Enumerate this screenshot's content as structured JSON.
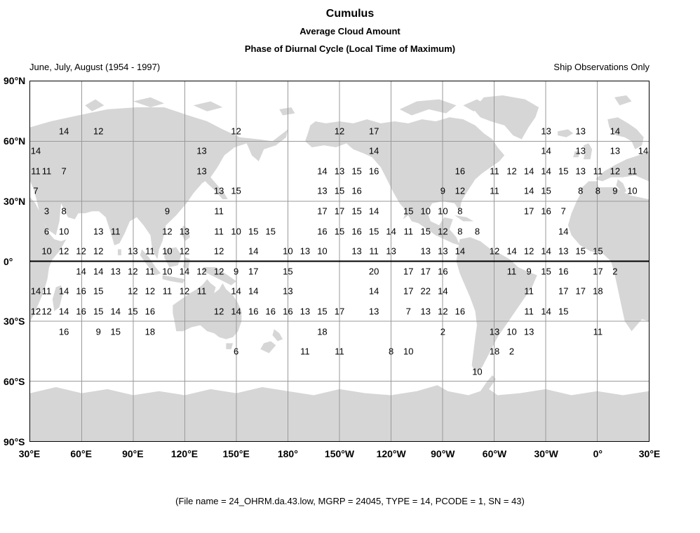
{
  "header": {
    "title": "Cumulus",
    "subtitle1": "Average Cloud Amount",
    "subtitle2": "Phase of Diurnal Cycle (Local Time of Maximum)",
    "left_note": "June, July, August (1954 - 1997)",
    "right_note": "Ship Observations Only"
  },
  "footer": {
    "file_info": "(File name = 24_OHRM.da.43.low, MGRP = 24045, TYPE = 14, PCODE = 1, SN = 43)"
  },
  "colors": {
    "land": "#d6d6d6",
    "grid_line": "#9a9a9a",
    "equator_line": "#000000",
    "map_border": "#000000",
    "text": "#000000",
    "background": "#ffffff"
  },
  "chart_data": {
    "type": "heatmap",
    "title": "Cumulus",
    "subtitle": "Average Cloud Amount",
    "variable": "Phase of Diurnal Cycle (Local Time of Maximum)",
    "season": "June, July, August (1954 - 1997)",
    "source": "Ship Observations Only",
    "projection": "equirectangular world map, longitude 30E eastward around to 30E, latitude 90N to 90S",
    "grid_interval_deg": 30,
    "cell_size_deg": 10,
    "x_tick_labels": [
      "30°E",
      "60°E",
      "90°E",
      "120°E",
      "150°E",
      "180°",
      "150°W",
      "120°W",
      "90°W",
      "60°W",
      "30°W",
      "0°",
      "30°E"
    ],
    "y_tick_labels": [
      "90°N",
      "60°N",
      "30°N",
      "0°",
      "30°S",
      "60°S",
      "90°S"
    ],
    "points_columns": [
      "lon_deg_map (30 = left edge, increases eastward to 390 = right edge)",
      "lat_deg",
      "local_time_of_maximum"
    ],
    "points": [
      [
        50,
        65,
        14
      ],
      [
        70,
        65,
        12
      ],
      [
        150,
        65,
        12
      ],
      [
        210,
        65,
        12
      ],
      [
        230,
        65,
        17
      ],
      [
        330,
        65,
        13
      ],
      [
        350,
        65,
        13
      ],
      [
        370,
        65,
        14
      ],
      [
        30,
        55,
        14
      ],
      [
        130,
        55,
        13
      ],
      [
        230,
        55,
        14
      ],
      [
        330,
        55,
        14
      ],
      [
        350,
        55,
        13
      ],
      [
        370,
        55,
        13
      ],
      [
        390,
        55,
        14
      ],
      [
        30,
        45,
        11
      ],
      [
        40,
        45,
        11
      ],
      [
        50,
        45,
        7
      ],
      [
        130,
        45,
        13
      ],
      [
        200,
        45,
        14
      ],
      [
        210,
        45,
        13
      ],
      [
        220,
        45,
        15
      ],
      [
        230,
        45,
        16
      ],
      [
        280,
        45,
        16
      ],
      [
        300,
        45,
        11
      ],
      [
        310,
        45,
        12
      ],
      [
        320,
        45,
        14
      ],
      [
        330,
        45,
        14
      ],
      [
        340,
        45,
        15
      ],
      [
        350,
        45,
        13
      ],
      [
        360,
        45,
        11
      ],
      [
        370,
        45,
        12
      ],
      [
        380,
        45,
        11
      ],
      [
        30,
        35,
        7
      ],
      [
        140,
        35,
        13
      ],
      [
        150,
        35,
        15
      ],
      [
        200,
        35,
        13
      ],
      [
        210,
        35,
        15
      ],
      [
        220,
        35,
        16
      ],
      [
        270,
        35,
        9
      ],
      [
        280,
        35,
        12
      ],
      [
        300,
        35,
        11
      ],
      [
        320,
        35,
        14
      ],
      [
        330,
        35,
        15
      ],
      [
        350,
        35,
        8
      ],
      [
        360,
        35,
        8
      ],
      [
        370,
        35,
        9
      ],
      [
        380,
        35,
        10
      ],
      [
        40,
        25,
        3
      ],
      [
        50,
        25,
        8
      ],
      [
        110,
        25,
        9
      ],
      [
        140,
        25,
        11
      ],
      [
        200,
        25,
        17
      ],
      [
        210,
        25,
        17
      ],
      [
        220,
        25,
        15
      ],
      [
        230,
        25,
        14
      ],
      [
        250,
        25,
        15
      ],
      [
        260,
        25,
        10
      ],
      [
        270,
        25,
        10
      ],
      [
        280,
        25,
        8
      ],
      [
        320,
        25,
        17
      ],
      [
        330,
        25,
        16
      ],
      [
        340,
        25,
        7
      ],
      [
        40,
        15,
        6
      ],
      [
        50,
        15,
        10
      ],
      [
        70,
        15,
        13
      ],
      [
        80,
        15,
        11
      ],
      [
        110,
        15,
        12
      ],
      [
        120,
        15,
        13
      ],
      [
        140,
        15,
        11
      ],
      [
        150,
        15,
        10
      ],
      [
        160,
        15,
        15
      ],
      [
        170,
        15,
        15
      ],
      [
        200,
        15,
        16
      ],
      [
        210,
        15,
        15
      ],
      [
        220,
        15,
        16
      ],
      [
        230,
        15,
        15
      ],
      [
        240,
        15,
        14
      ],
      [
        250,
        15,
        11
      ],
      [
        260,
        15,
        15
      ],
      [
        270,
        15,
        12
      ],
      [
        280,
        15,
        8
      ],
      [
        290,
        15,
        8
      ],
      [
        340,
        15,
        14
      ],
      [
        40,
        5,
        10
      ],
      [
        50,
        5,
        12
      ],
      [
        60,
        5,
        12
      ],
      [
        70,
        5,
        12
      ],
      [
        90,
        5,
        13
      ],
      [
        100,
        5,
        11
      ],
      [
        110,
        5,
        10
      ],
      [
        120,
        5,
        12
      ],
      [
        140,
        5,
        12
      ],
      [
        160,
        5,
        14
      ],
      [
        180,
        5,
        10
      ],
      [
        190,
        5,
        13
      ],
      [
        200,
        5,
        10
      ],
      [
        220,
        5,
        13
      ],
      [
        230,
        5,
        11
      ],
      [
        240,
        5,
        13
      ],
      [
        260,
        5,
        13
      ],
      [
        270,
        5,
        13
      ],
      [
        280,
        5,
        14
      ],
      [
        300,
        5,
        12
      ],
      [
        310,
        5,
        14
      ],
      [
        320,
        5,
        12
      ],
      [
        330,
        5,
        14
      ],
      [
        340,
        5,
        13
      ],
      [
        350,
        5,
        15
      ],
      [
        360,
        5,
        15
      ],
      [
        60,
        -5,
        14
      ],
      [
        70,
        -5,
        14
      ],
      [
        80,
        -5,
        13
      ],
      [
        90,
        -5,
        12
      ],
      [
        100,
        -5,
        11
      ],
      [
        110,
        -5,
        10
      ],
      [
        120,
        -5,
        14
      ],
      [
        130,
        -5,
        12
      ],
      [
        140,
        -5,
        12
      ],
      [
        150,
        -5,
        9
      ],
      [
        160,
        -5,
        17
      ],
      [
        180,
        -5,
        15
      ],
      [
        230,
        -5,
        20
      ],
      [
        250,
        -5,
        17
      ],
      [
        260,
        -5,
        17
      ],
      [
        270,
        -5,
        16
      ],
      [
        310,
        -5,
        11
      ],
      [
        320,
        -5,
        9
      ],
      [
        330,
        -5,
        15
      ],
      [
        340,
        -5,
        16
      ],
      [
        360,
        -5,
        17
      ],
      [
        370,
        -5,
        2
      ],
      [
        30,
        -15,
        14
      ],
      [
        40,
        -15,
        11
      ],
      [
        50,
        -15,
        14
      ],
      [
        60,
        -15,
        16
      ],
      [
        70,
        -15,
        15
      ],
      [
        90,
        -15,
        12
      ],
      [
        100,
        -15,
        12
      ],
      [
        110,
        -15,
        11
      ],
      [
        120,
        -15,
        12
      ],
      [
        130,
        -15,
        11
      ],
      [
        150,
        -15,
        14
      ],
      [
        160,
        -15,
        14
      ],
      [
        180,
        -15,
        13
      ],
      [
        230,
        -15,
        14
      ],
      [
        250,
        -15,
        17
      ],
      [
        260,
        -15,
        22
      ],
      [
        270,
        -15,
        14
      ],
      [
        320,
        -15,
        11
      ],
      [
        340,
        -15,
        17
      ],
      [
        350,
        -15,
        17
      ],
      [
        360,
        -15,
        18
      ],
      [
        30,
        -25,
        12
      ],
      [
        40,
        -25,
        12
      ],
      [
        50,
        -25,
        14
      ],
      [
        60,
        -25,
        16
      ],
      [
        70,
        -25,
        15
      ],
      [
        80,
        -25,
        14
      ],
      [
        90,
        -25,
        15
      ],
      [
        100,
        -25,
        16
      ],
      [
        140,
        -25,
        12
      ],
      [
        150,
        -25,
        14
      ],
      [
        160,
        -25,
        16
      ],
      [
        170,
        -25,
        16
      ],
      [
        180,
        -25,
        16
      ],
      [
        190,
        -25,
        13
      ],
      [
        200,
        -25,
        15
      ],
      [
        210,
        -25,
        17
      ],
      [
        230,
        -25,
        13
      ],
      [
        250,
        -25,
        7
      ],
      [
        260,
        -25,
        13
      ],
      [
        270,
        -25,
        12
      ],
      [
        280,
        -25,
        16
      ],
      [
        320,
        -25,
        11
      ],
      [
        330,
        -25,
        14
      ],
      [
        340,
        -25,
        15
      ],
      [
        50,
        -35,
        16
      ],
      [
        70,
        -35,
        9
      ],
      [
        80,
        -35,
        15
      ],
      [
        100,
        -35,
        18
      ],
      [
        200,
        -35,
        18
      ],
      [
        270,
        -35,
        2
      ],
      [
        300,
        -35,
        13
      ],
      [
        310,
        -35,
        10
      ],
      [
        320,
        -35,
        13
      ],
      [
        360,
        -35,
        11
      ],
      [
        150,
        -45,
        6
      ],
      [
        190,
        -45,
        11
      ],
      [
        210,
        -45,
        11
      ],
      [
        240,
        -45,
        8
      ],
      [
        250,
        -45,
        10
      ],
      [
        300,
        -45,
        18
      ],
      [
        310,
        -45,
        2
      ],
      [
        290,
        -55,
        10
      ]
    ]
  }
}
